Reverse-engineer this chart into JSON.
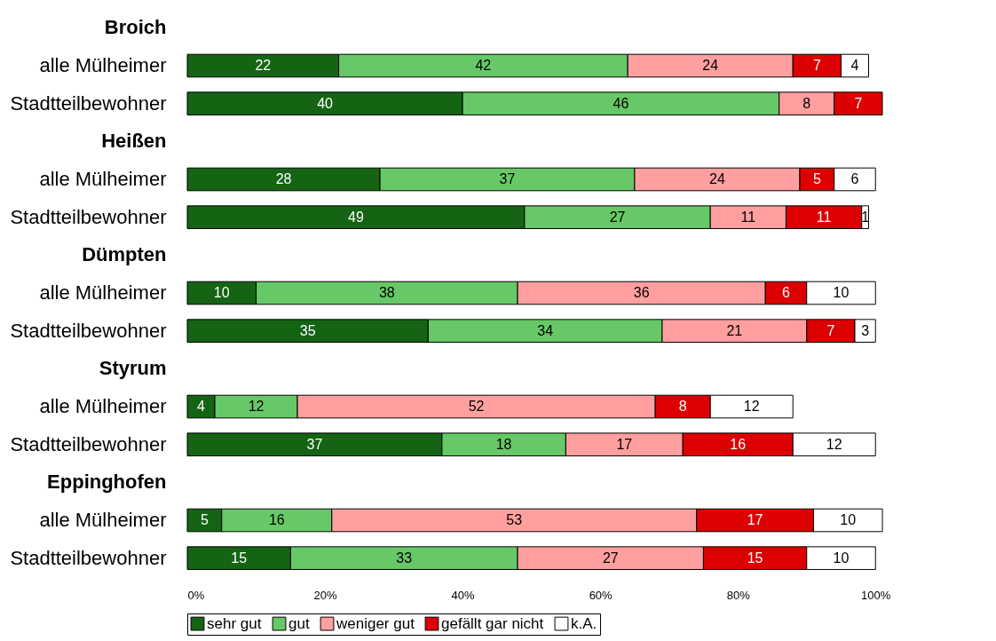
{
  "chart_data": {
    "type": "bar",
    "orientation": "horizontal",
    "stacked": true,
    "data_labels": true,
    "legend": "bottom",
    "grid": false,
    "categories": [
      "Broich",
      "alle Mülheimer",
      "Stadtteilbewohner",
      "Heißen",
      "alle Mülheimer",
      "Stadtteilbewohner",
      "Dümpten",
      "alle Mülheimer",
      "Stadtteilbewohner",
      "Styrum",
      "alle Mülheimer",
      "Stadtteilbewohner",
      "Eppinghofen",
      "alle Mülheimer",
      "Stadtteilbewohner"
    ],
    "series": [
      {
        "name": "sehr gut",
        "color": "#146414",
        "values": [
          null,
          22,
          40,
          null,
          28,
          49,
          null,
          10,
          35,
          null,
          4,
          37,
          null,
          5,
          15
        ]
      },
      {
        "name": "gut",
        "color": "#66c866",
        "values": [
          null,
          42,
          46,
          null,
          37,
          27,
          null,
          38,
          34,
          null,
          12,
          18,
          null,
          16,
          33
        ]
      },
      {
        "name": "weniger gut",
        "color": "#ff9f9f",
        "values": [
          null,
          24,
          8,
          null,
          24,
          11,
          null,
          36,
          21,
          null,
          52,
          17,
          null,
          53,
          27
        ]
      },
      {
        "name": "gefällt gar nicht",
        "color": "#dd0000",
        "values": [
          null,
          7,
          7,
          null,
          5,
          11,
          null,
          6,
          7,
          null,
          8,
          16,
          null,
          17,
          15
        ]
      },
      {
        "name": "k.A.",
        "color": "#ffffff",
        "values": [
          null,
          4,
          null,
          null,
          6,
          1,
          null,
          10,
          3,
          null,
          12,
          12,
          null,
          10,
          10
        ]
      }
    ],
    "xlim": [
      0,
      101
    ],
    "xticks": [
      {
        "value": 0,
        "label": "0%"
      },
      {
        "value": 20,
        "label": "20%"
      },
      {
        "value": 40,
        "label": "40%"
      },
      {
        "value": 60,
        "label": "60%"
      },
      {
        "value": 80,
        "label": "80%"
      },
      {
        "value": 100,
        "label": "100%"
      }
    ]
  }
}
